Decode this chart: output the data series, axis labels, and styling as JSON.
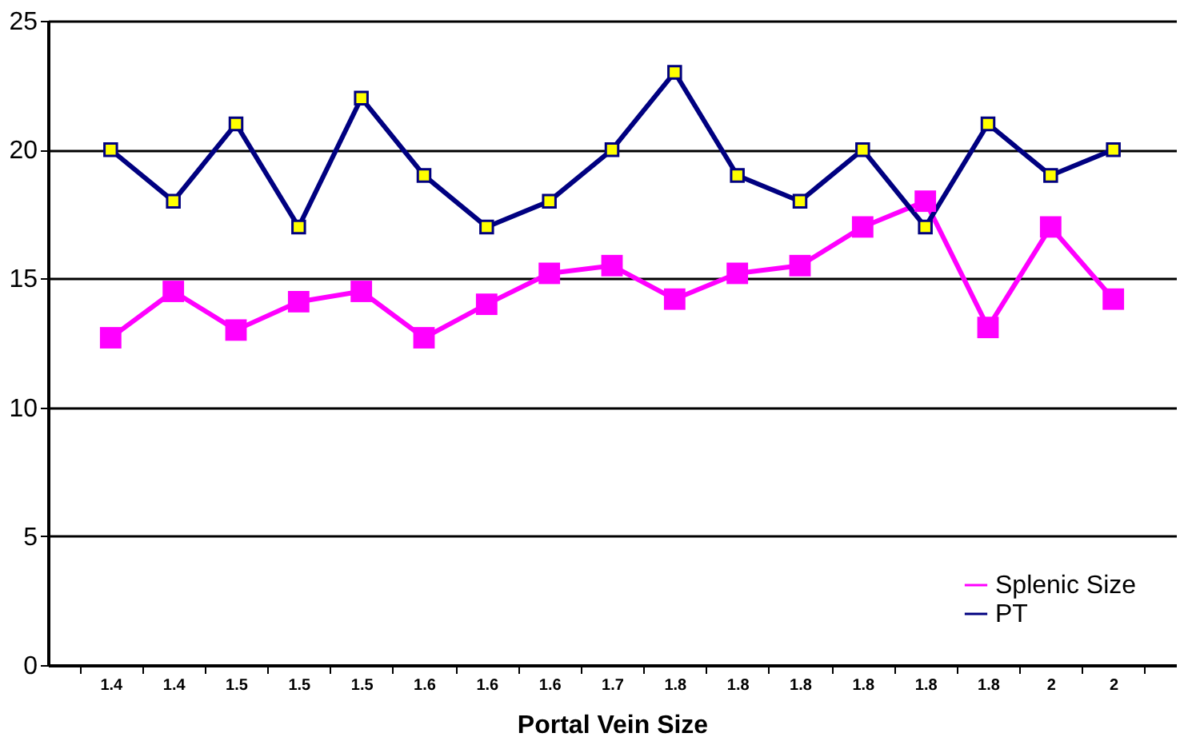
{
  "chart_data": {
    "type": "line",
    "xlabel": "Portal Vein Size",
    "categories": [
      "1.4",
      "1.4",
      "1.5",
      "1.5",
      "1.5",
      "1.6",
      "1.6",
      "1.6",
      "1.7",
      "1.8",
      "1.8",
      "1.8",
      "1.8",
      "1.8",
      "1.8",
      "2",
      "2"
    ],
    "series": [
      {
        "name": "Splenic Size",
        "color": "#ff00ff",
        "values": [
          12.7,
          14.5,
          13.0,
          14.1,
          14.5,
          12.7,
          14.0,
          15.2,
          15.5,
          14.2,
          15.2,
          15.5,
          17.0,
          18.0,
          13.1,
          17.0,
          14.2
        ]
      },
      {
        "name": "PT",
        "color": "#000080",
        "values": [
          20,
          18,
          21,
          17,
          22,
          19,
          17,
          18,
          20,
          23,
          19,
          18,
          20,
          17,
          21,
          19,
          20
        ]
      }
    ],
    "ylim": [
      0,
      25
    ],
    "yticks": [
      0,
      5,
      10,
      15,
      20,
      25
    ],
    "grid": "y",
    "legend": "bottom right",
    "marker": "square"
  }
}
